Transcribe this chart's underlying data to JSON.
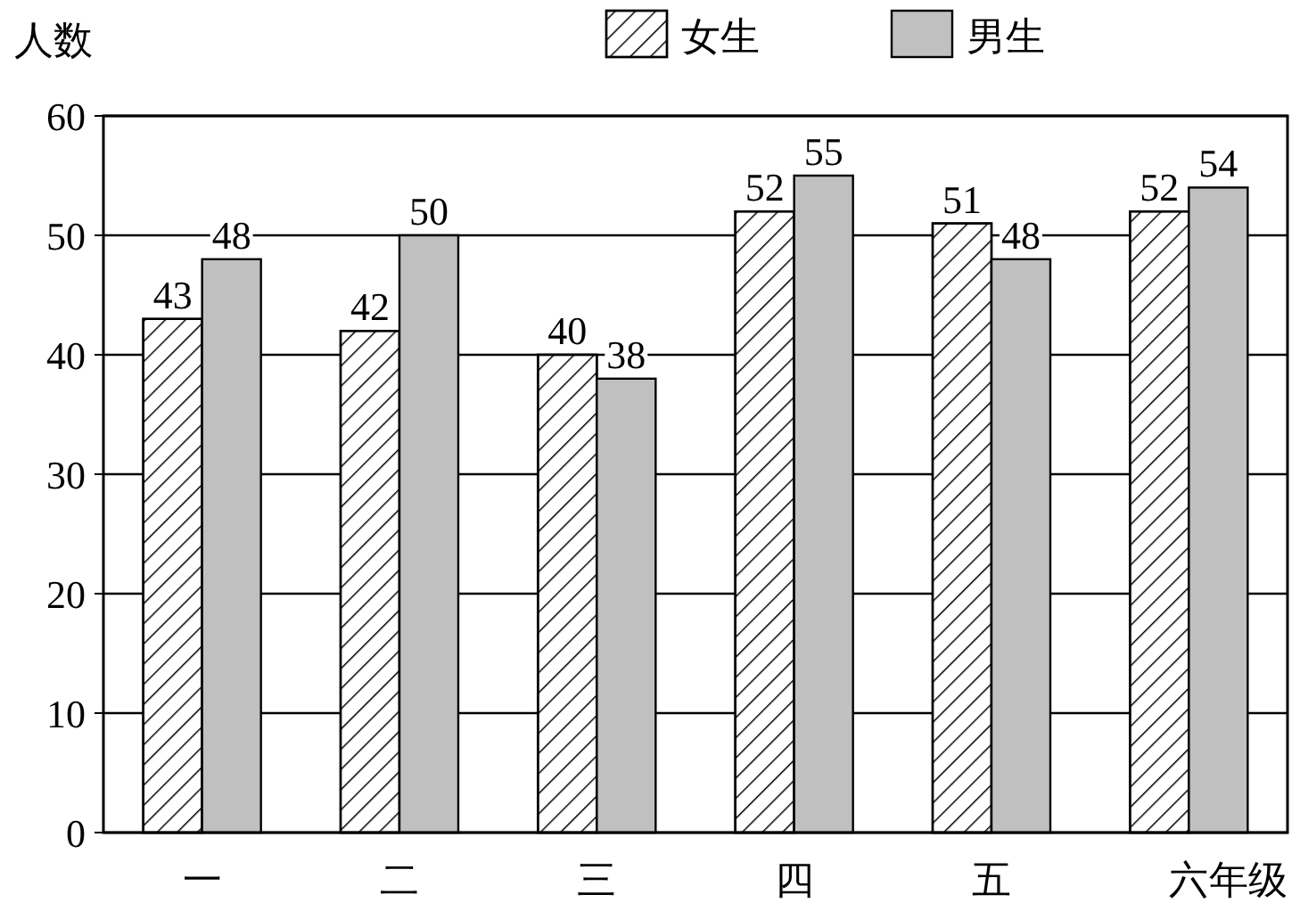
{
  "chart_data": {
    "type": "bar",
    "xlabel": "年级",
    "ylabel": "人数",
    "categories": [
      "一",
      "二",
      "三",
      "四",
      "五",
      "六"
    ],
    "series": [
      {
        "name": "女生",
        "color": "#ffffff",
        "values": [
          43,
          42,
          40,
          52,
          51,
          52
        ]
      },
      {
        "name": "男生",
        "color": "#c0c0c0",
        "values": [
          48,
          50,
          38,
          55,
          48,
          54
        ]
      }
    ],
    "ylim": [
      0,
      60
    ],
    "yticks": [
      0,
      10,
      20,
      30,
      40,
      50,
      60
    ],
    "grid": "y",
    "legend": "top right",
    "data_labels": true
  }
}
